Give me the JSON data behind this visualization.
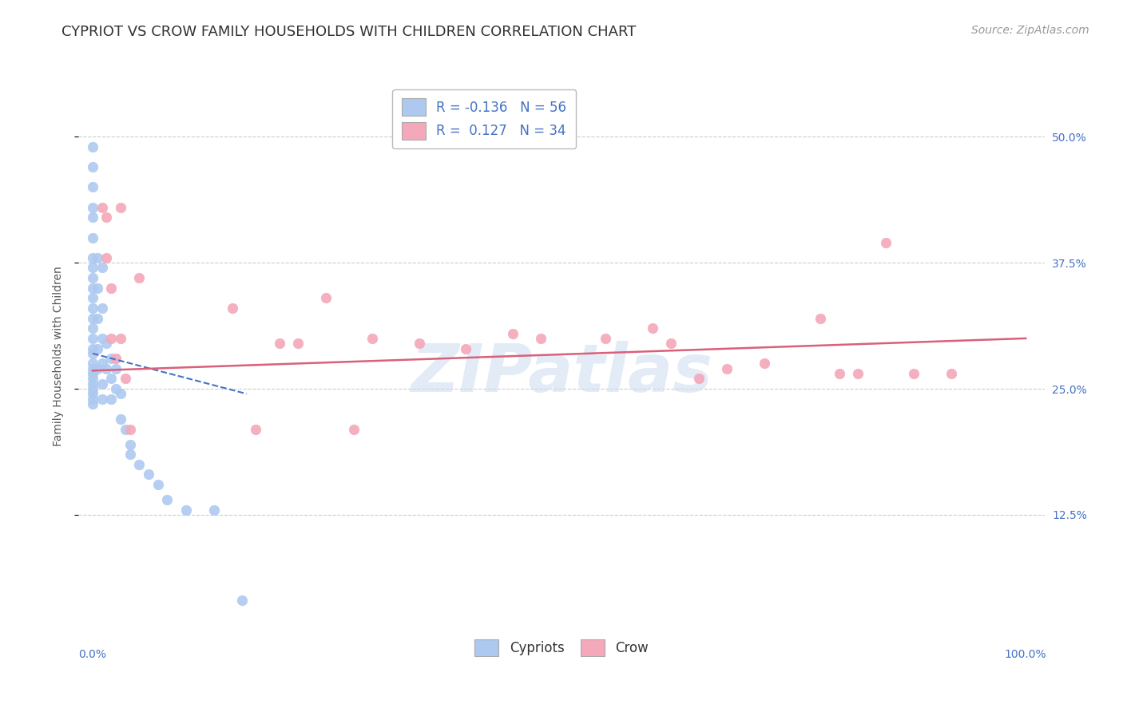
{
  "title": "CYPRIOT VS CROW FAMILY HOUSEHOLDS WITH CHILDREN CORRELATION CHART",
  "source": "Source: ZipAtlas.com",
  "ylabel": "Family Households with Children",
  "watermark": "ZIPatlas",
  "legend_r_cypriot": "-0.136",
  "legend_n_cypriot": "56",
  "legend_r_crow": "0.127",
  "legend_n_crow": "34",
  "cypriot_color": "#adc9f0",
  "crow_color": "#f4a8ba",
  "cypriot_line_color": "#4472c4",
  "crow_line_color": "#d9607a",
  "label_color": "#4472c4",
  "ytick_labels": [
    "12.5%",
    "25.0%",
    "37.5%",
    "50.0%"
  ],
  "ytick_values": [
    0.125,
    0.25,
    0.375,
    0.5
  ],
  "cypriot_x": [
    0.0,
    0.0,
    0.0,
    0.0,
    0.0,
    0.0,
    0.0,
    0.0,
    0.0,
    0.0,
    0.0,
    0.0,
    0.0,
    0.0,
    0.0,
    0.0,
    0.0,
    0.0,
    0.0,
    0.0,
    0.0,
    0.0,
    0.0,
    0.0,
    0.0,
    0.0,
    0.005,
    0.005,
    0.005,
    0.005,
    0.005,
    0.01,
    0.01,
    0.01,
    0.01,
    0.01,
    0.01,
    0.015,
    0.015,
    0.02,
    0.02,
    0.02,
    0.025,
    0.025,
    0.03,
    0.03,
    0.035,
    0.04,
    0.04,
    0.05,
    0.06,
    0.07,
    0.08,
    0.1,
    0.13,
    0.16
  ],
  "cypriot_y": [
    0.49,
    0.47,
    0.45,
    0.43,
    0.42,
    0.4,
    0.38,
    0.37,
    0.36,
    0.35,
    0.34,
    0.33,
    0.32,
    0.31,
    0.3,
    0.29,
    0.285,
    0.275,
    0.27,
    0.265,
    0.26,
    0.255,
    0.25,
    0.245,
    0.24,
    0.235,
    0.38,
    0.35,
    0.32,
    0.29,
    0.27,
    0.37,
    0.33,
    0.3,
    0.275,
    0.255,
    0.24,
    0.295,
    0.27,
    0.28,
    0.26,
    0.24,
    0.27,
    0.25,
    0.245,
    0.22,
    0.21,
    0.195,
    0.185,
    0.175,
    0.165,
    0.155,
    0.14,
    0.13,
    0.13,
    0.04
  ],
  "crow_x": [
    0.01,
    0.015,
    0.015,
    0.02,
    0.02,
    0.025,
    0.03,
    0.03,
    0.035,
    0.04,
    0.05,
    0.15,
    0.175,
    0.2,
    0.22,
    0.25,
    0.28,
    0.3,
    0.35,
    0.4,
    0.45,
    0.48,
    0.55,
    0.6,
    0.62,
    0.65,
    0.68,
    0.72,
    0.78,
    0.8,
    0.82,
    0.85,
    0.88,
    0.92
  ],
  "crow_y": [
    0.43,
    0.42,
    0.38,
    0.35,
    0.3,
    0.28,
    0.43,
    0.3,
    0.26,
    0.21,
    0.36,
    0.33,
    0.21,
    0.295,
    0.295,
    0.34,
    0.21,
    0.3,
    0.295,
    0.29,
    0.305,
    0.3,
    0.3,
    0.31,
    0.295,
    0.26,
    0.27,
    0.275,
    0.32,
    0.265,
    0.265,
    0.395,
    0.265,
    0.265
  ],
  "cypriot_trendline_x": [
    0.0,
    0.165
  ],
  "cypriot_trendline_y": [
    0.285,
    0.245
  ],
  "crow_trendline_x": [
    0.0,
    1.0
  ],
  "crow_trendline_y": [
    0.268,
    0.3
  ],
  "grid_color": "#cccccc",
  "background_color": "#ffffff",
  "title_fontsize": 13,
  "source_fontsize": 10,
  "axis_label_fontsize": 10,
  "tick_fontsize": 10,
  "legend_fontsize": 12,
  "marker_size": 9,
  "xlim": [
    -0.015,
    1.02
  ],
  "ylim": [
    0.0,
    0.565
  ]
}
